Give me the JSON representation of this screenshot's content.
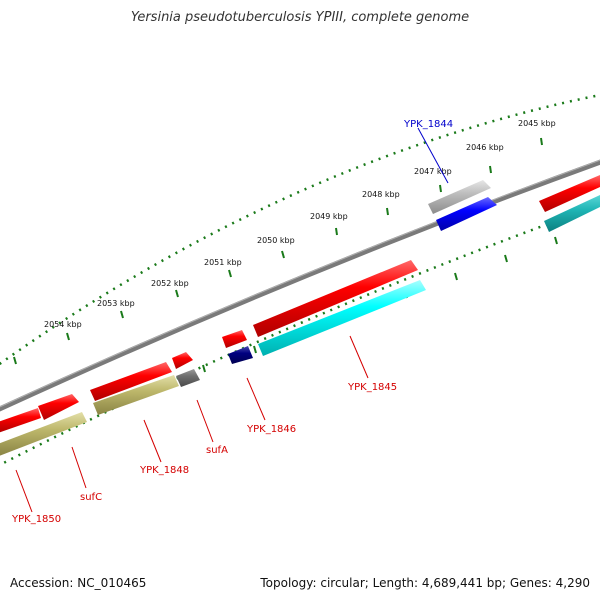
{
  "title": "Yersinia pseudotuberculosis YPIII, complete genome",
  "footer": {
    "accession": "Accession: NC_010465",
    "summary": "Topology: circular; Length: 4,689,441 bp; Genes: 4,290"
  },
  "colors": {
    "backbone": "#7f7f7f",
    "cds": "#ff0000",
    "rrna_like": "#00ffff",
    "gene_olive": "#bdb76b",
    "gene_gray": "#9e9e9e",
    "gene_dark": "#6e6e6e",
    "gene_blue": "#0000ff",
    "gene_navy": "#000080",
    "dots": "#1a7a1a",
    "label_red": "#d40000",
    "label_blue": "#0000cc"
  },
  "kbp_labels": [
    "2045 kbp",
    "2046 kbp",
    "2047 kbp",
    "2048 kbp",
    "2049 kbp",
    "2050 kbp",
    "2051 kbp",
    "2052 kbp",
    "2053 kbp",
    "2054 kbp"
  ],
  "gene_labels": [
    {
      "text": "YPK_1844",
      "color": "blue"
    },
    {
      "text": "YPK_1845",
      "color": "red"
    },
    {
      "text": "YPK_1846",
      "color": "red"
    },
    {
      "text": "sufA",
      "color": "red"
    },
    {
      "text": "YPK_1848",
      "color": "red"
    },
    {
      "text": "sufC",
      "color": "red"
    },
    {
      "text": "YPK_1850",
      "color": "red"
    }
  ]
}
